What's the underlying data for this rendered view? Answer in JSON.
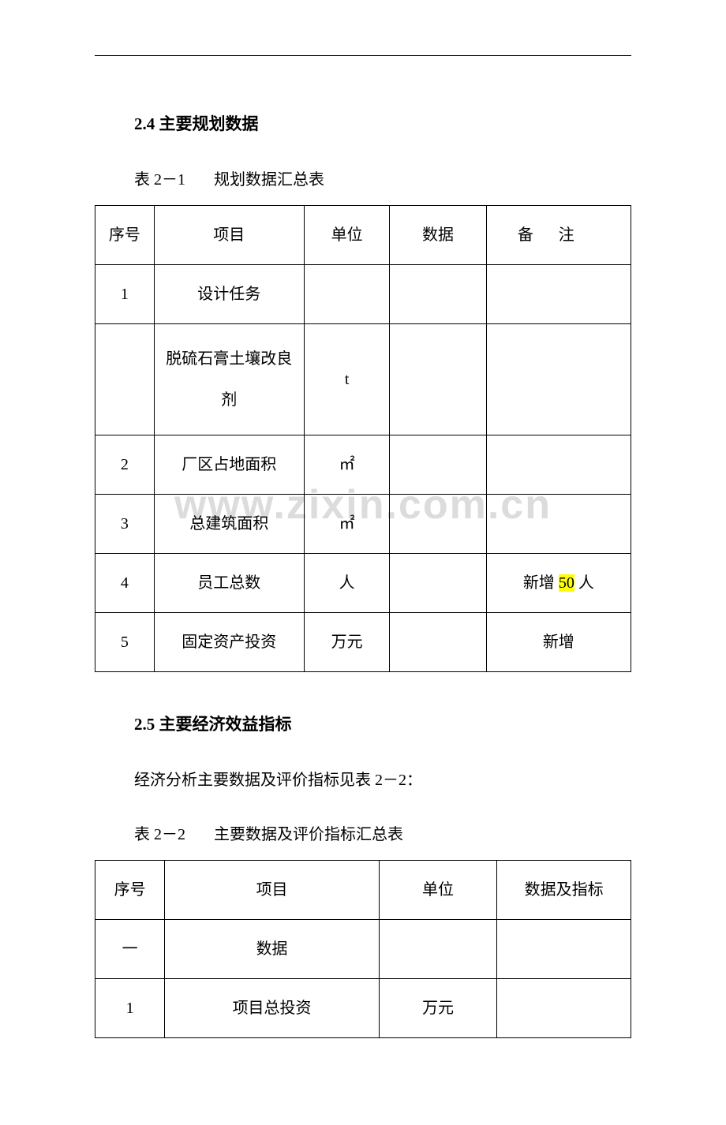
{
  "watermark": "www.zixin.com.cn",
  "section1": {
    "heading": "2.4 主要规划数据",
    "caption_num": "表 2－1",
    "caption_title": "规划数据汇总表",
    "headers": {
      "seq": "序号",
      "item": "项目",
      "unit": "单位",
      "data": "数据",
      "remark": "备注"
    },
    "rows": [
      {
        "seq": "1",
        "item": "设计任务",
        "unit": "",
        "data": "",
        "remark": ""
      },
      {
        "seq": "",
        "item": "脱硫石膏土壤改良剂",
        "unit": "t",
        "data": "",
        "remark": ""
      },
      {
        "seq": "2",
        "item": "厂区占地面积",
        "unit": "㎡",
        "data": "",
        "remark": ""
      },
      {
        "seq": "3",
        "item": "总建筑面积",
        "unit": "㎡",
        "data": "",
        "remark": ""
      },
      {
        "seq": "4",
        "item": "员工总数",
        "unit": "人",
        "data": "",
        "remark_pre": "新增 ",
        "remark_hl": "50",
        "remark_post": " 人"
      },
      {
        "seq": "5",
        "item": "固定资产投资",
        "unit": "万元",
        "data": "",
        "remark": "新增"
      }
    ]
  },
  "section2": {
    "heading": "2.5 主要经济效益指标",
    "paragraph": "经济分析主要数据及评价指标见表 2－2：",
    "caption_num": "表 2－2",
    "caption_title": "主要数据及评价指标汇总表",
    "headers": {
      "seq": "序号",
      "item": "项目",
      "unit": "单位",
      "data": "数据及指标"
    },
    "rows": [
      {
        "seq": "一",
        "item": "数据",
        "unit": "",
        "data": ""
      },
      {
        "seq": "1",
        "item": "项目总投资",
        "unit": "万元",
        "data": ""
      }
    ]
  },
  "styles": {
    "background_color": "#ffffff",
    "text_color": "#000000",
    "watermark_color": "#dcdcdc",
    "highlight_color": "#ffff00",
    "border_color": "#000000",
    "body_fontsize": 20,
    "heading_fontsize": 21,
    "watermark_fontsize": 52
  }
}
